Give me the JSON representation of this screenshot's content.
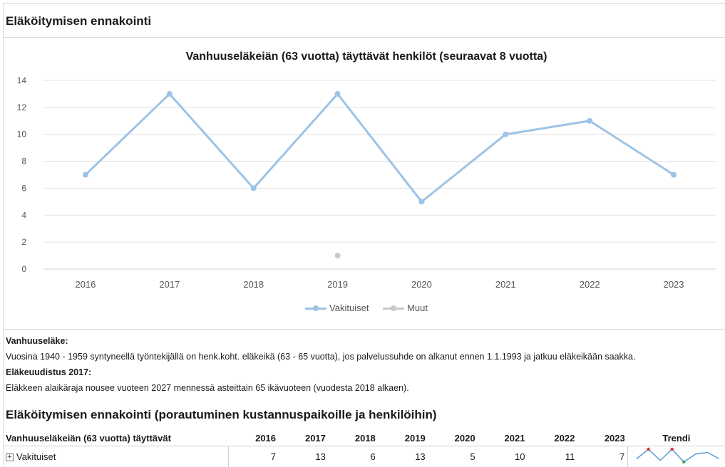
{
  "report": {
    "title": "Eläköitymisen ennakointi"
  },
  "chart_data": {
    "type": "line",
    "title": "Vanhuuseläkeiän (63 vuotta) täyttävät henkilöt (seuraavat 8 vuotta)",
    "categories": [
      "2016",
      "2017",
      "2018",
      "2019",
      "2020",
      "2021",
      "2022",
      "2023"
    ],
    "series": [
      {
        "name": "Vakituiset",
        "values": [
          7,
          13,
          6,
          13,
          5,
          10,
          11,
          7
        ],
        "color": "#9dc3e6",
        "style": "line-with-markers"
      },
      {
        "name": "Muut",
        "values": [
          null,
          null,
          null,
          1,
          null,
          null,
          null,
          null
        ],
        "color": "#c9c9c9",
        "style": "markers"
      }
    ],
    "ylim": [
      0,
      14
    ],
    "yticks": [
      0,
      2,
      4,
      6,
      8,
      10,
      12,
      14
    ],
    "grid": true,
    "legend": "bottom-center"
  },
  "notes": [
    {
      "heading": "Vanhuuseläke:",
      "text": "Vuosina 1940 - 1959 syntyneellä työntekijällä on henk.koht. eläkeikä (63 - 65 vuotta), jos palvelussuhde on alkanut ennen 1.1.1993 ja jatkuu eläkeikään saakka."
    },
    {
      "heading": "Eläkeuudistus 2017:",
      "text": "Eläkkeen alaikäraja nousee vuoteen 2027 mennessä asteittain 65 ikävuoteen (vuodesta 2018 alkaen)."
    }
  ],
  "drill": {
    "title": "Eläköitymisen ennakointi (porautuminen kustannuspaikoille ja henkilöihin)",
    "header_label": "Vanhuuseläkeiän (63 vuotta) täyttävät",
    "years": [
      "2016",
      "2017",
      "2018",
      "2019",
      "2020",
      "2021",
      "2022",
      "2023"
    ],
    "trend_label": "Trendi",
    "expand_icon": "plus-box-icon",
    "rows": [
      {
        "label": "Vakituiset",
        "values": [
          "7",
          "13",
          "6",
          "13",
          "5",
          "10",
          "11",
          "7"
        ]
      }
    ],
    "trend_colors": {
      "line": "#5b9bd5",
      "high": "#e0302a",
      "low": "#3aa35a"
    }
  }
}
